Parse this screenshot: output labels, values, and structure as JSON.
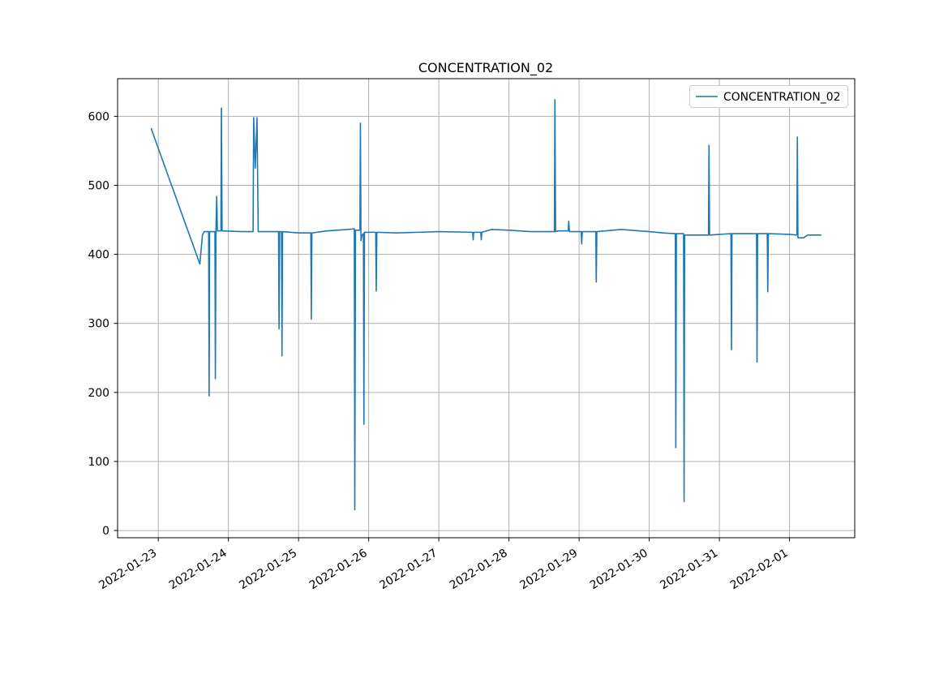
{
  "chart_data": {
    "type": "line",
    "title": "CONCENTRATION_02",
    "legend": {
      "entries": [
        "CONCENTRATION_02"
      ],
      "position": "upper right"
    },
    "grid": true,
    "colors": {
      "line": "#1f77b4",
      "grid": "#b0b0b0",
      "spine": "#000000",
      "legend_border": "#cccccc",
      "background": "#ffffff"
    },
    "x_axis": {
      "unit": "days since 2022-01-23 00:00",
      "tick_days": [
        0,
        1,
        2,
        3,
        4,
        5,
        6,
        7,
        8,
        9
      ],
      "tick_labels": [
        "2022-01-23",
        "2022-01-24",
        "2022-01-25",
        "2022-01-26",
        "2022-01-27",
        "2022-01-28",
        "2022-01-29",
        "2022-01-30",
        "2022-01-31",
        "2022-02-01"
      ],
      "lim": [
        -0.58,
        9.93
      ],
      "label_rotation_deg": 32
    },
    "y_axis": {
      "ticks": [
        0,
        100,
        200,
        300,
        400,
        500,
        600
      ],
      "lim": [
        -10.5,
        654.5
      ]
    },
    "series": [
      {
        "name": "CONCENTRATION_02",
        "points": [
          [
            -0.1,
            582
          ],
          [
            0.593,
            386
          ],
          [
            0.63,
            428
          ],
          [
            0.655,
            433
          ],
          [
            0.718,
            433
          ],
          [
            0.725,
            195
          ],
          [
            0.732,
            433
          ],
          [
            0.808,
            433
          ],
          [
            0.814,
            220
          ],
          [
            0.822,
            433
          ],
          [
            0.833,
            484
          ],
          [
            0.843,
            434
          ],
          [
            0.893,
            434
          ],
          [
            0.9,
            612
          ],
          [
            0.91,
            434
          ],
          [
            1.2,
            433
          ],
          [
            1.352,
            433
          ],
          [
            1.36,
            598
          ],
          [
            1.383,
            525
          ],
          [
            1.408,
            598
          ],
          [
            1.425,
            433
          ],
          [
            1.6,
            433
          ],
          [
            1.715,
            433
          ],
          [
            1.722,
            292
          ],
          [
            1.73,
            433
          ],
          [
            1.757,
            433
          ],
          [
            1.764,
            253
          ],
          [
            1.772,
            433
          ],
          [
            2.0,
            431
          ],
          [
            2.175,
            431
          ],
          [
            2.182,
            306
          ],
          [
            2.19,
            431
          ],
          [
            2.4,
            434
          ],
          [
            2.7,
            436
          ],
          [
            2.795,
            437
          ],
          [
            2.802,
            30
          ],
          [
            2.812,
            435
          ],
          [
            2.875,
            435
          ],
          [
            2.882,
            590
          ],
          [
            2.89,
            420
          ],
          [
            2.905,
            428
          ],
          [
            2.925,
            430
          ],
          [
            2.932,
            154
          ],
          [
            2.94,
            432
          ],
          [
            3.1,
            432
          ],
          [
            3.108,
            347
          ],
          [
            3.116,
            432
          ],
          [
            3.4,
            431
          ],
          [
            3.7,
            432
          ],
          [
            4.0,
            433
          ],
          [
            4.483,
            432
          ],
          [
            4.49,
            421
          ],
          [
            4.497,
            432
          ],
          [
            4.598,
            432
          ],
          [
            4.605,
            421
          ],
          [
            4.612,
            432
          ],
          [
            4.75,
            436
          ],
          [
            5.0,
            435
          ],
          [
            5.3,
            433
          ],
          [
            5.648,
            433
          ],
          [
            5.655,
            624
          ],
          [
            5.665,
            433
          ],
          [
            5.7,
            434
          ],
          [
            5.845,
            434
          ],
          [
            5.852,
            448
          ],
          [
            5.862,
            433
          ],
          [
            6.03,
            433
          ],
          [
            6.037,
            415
          ],
          [
            6.045,
            433
          ],
          [
            6.238,
            433
          ],
          [
            6.245,
            360
          ],
          [
            6.253,
            433
          ],
          [
            6.6,
            436
          ],
          [
            7.0,
            433
          ],
          [
            7.2,
            431
          ],
          [
            7.372,
            430
          ],
          [
            7.379,
            120
          ],
          [
            7.387,
            430
          ],
          [
            7.49,
            430
          ],
          [
            7.497,
            42
          ],
          [
            7.505,
            428
          ],
          [
            7.845,
            428
          ],
          [
            7.852,
            558
          ],
          [
            7.86,
            428
          ],
          [
            8.165,
            430
          ],
          [
            8.172,
            262
          ],
          [
            8.18,
            430
          ],
          [
            8.53,
            430
          ],
          [
            8.537,
            244
          ],
          [
            8.545,
            430
          ],
          [
            8.683,
            430
          ],
          [
            8.69,
            346
          ],
          [
            8.698,
            430
          ],
          [
            9.0,
            429
          ],
          [
            9.105,
            428
          ],
          [
            9.112,
            570
          ],
          [
            9.12,
            424
          ],
          [
            9.2,
            424
          ],
          [
            9.26,
            428
          ],
          [
            9.447,
            428
          ]
        ]
      }
    ]
  }
}
